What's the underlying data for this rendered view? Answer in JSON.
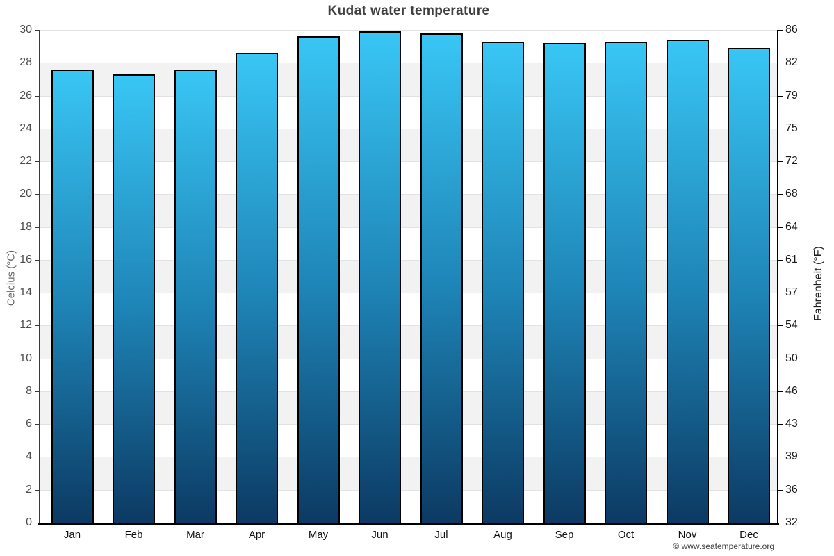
{
  "chart_data": {
    "type": "bar",
    "title": "Kudat water temperature",
    "categories": [
      "Jan",
      "Feb",
      "Mar",
      "Apr",
      "May",
      "Jun",
      "Jul",
      "Aug",
      "Sep",
      "Oct",
      "Nov",
      "Dec"
    ],
    "values": [
      27.6,
      27.3,
      27.6,
      28.6,
      29.6,
      29.9,
      29.8,
      29.3,
      29.2,
      29.3,
      29.4,
      28.9
    ],
    "ylabel_left": "Celcius (°C)",
    "ylabel_right": "Fahrenheit (°F)",
    "ylim_left": [
      0,
      30
    ],
    "ytick_step_celsius": 2,
    "yticks_left": [
      30,
      28,
      26,
      24,
      22,
      20,
      18,
      16,
      14,
      12,
      10,
      8,
      6,
      4,
      2,
      0
    ],
    "yticks_right": [
      86,
      82,
      79,
      75,
      72,
      68,
      64,
      61,
      57,
      54,
      50,
      46,
      43,
      39,
      36,
      32
    ],
    "legend": "none",
    "grid": "alternating horizontal bands every 2 degrees",
    "colors": {
      "bar_gradient_top": "#39c6f4",
      "bar_gradient_mid": "#1e84b6",
      "bar_gradient_bottom": "#0c3a63",
      "bar_border": "#000000",
      "band_alt": "#f2f2f2",
      "band_base": "#ffffff",
      "gridline": "#e2e2e2",
      "title_text": "#404040"
    }
  },
  "footer": {
    "watermark": "© www.seatemperature.org"
  }
}
